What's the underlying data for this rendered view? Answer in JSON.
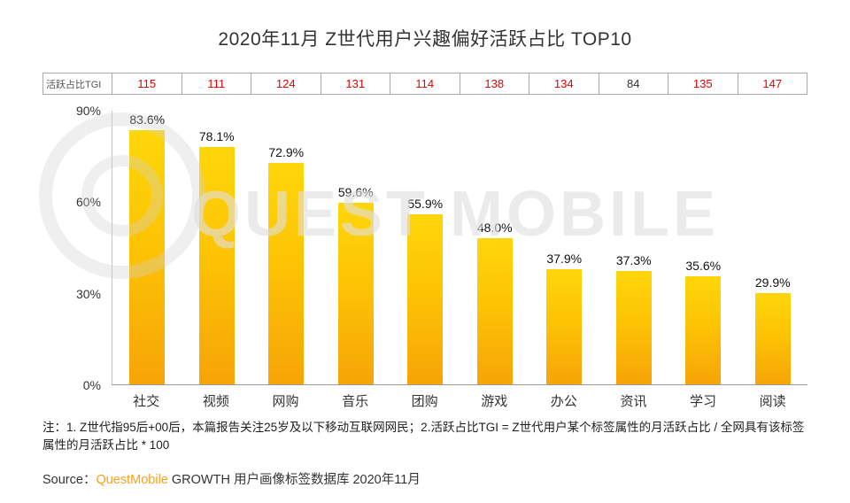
{
  "title": "2020年11月 Z世代用户兴趣偏好活跃占比 TOP10",
  "tgi": {
    "label": "活跃占比TGI",
    "values": [
      115,
      111,
      124,
      131,
      114,
      138,
      134,
      84,
      135,
      147
    ],
    "highlight_color": "#e60000",
    "normal_color": "#333333",
    "normal_index": 7
  },
  "chart_data": {
    "type": "bar",
    "categories": [
      "社交",
      "视频",
      "网购",
      "音乐",
      "团购",
      "游戏",
      "办公",
      "资讯",
      "学习",
      "阅读"
    ],
    "values": [
      83.6,
      78.1,
      72.9,
      59.6,
      55.9,
      48.0,
      37.9,
      37.3,
      35.6,
      29.9
    ],
    "value_labels": [
      "83.6%",
      "78.1%",
      "72.9%",
      "59.6%",
      "55.9%",
      "48.0%",
      "37.9%",
      "37.3%",
      "35.6%",
      "29.9%"
    ],
    "title": "2020年11月 Z世代用户兴趣偏好活跃占比 TOP10",
    "xlabel": "",
    "ylabel": "",
    "ylim": [
      0,
      90
    ],
    "yticks": [
      "0%",
      "30%",
      "60%",
      "90%"
    ],
    "grid": false,
    "legend": false,
    "bar_color_top": "#ffd60b",
    "bar_color_bottom": "#f7a407"
  },
  "watermark": "QUEST MOBILE",
  "note": "注：1. Z世代指95后+00后，本篇报告关注25岁及以下移动互联网网民；2.活跃占比TGI = Z世代用户某个标签属性的月活跃占比 / 全网具有该标签属性的月活跃占比 * 100",
  "source": {
    "prefix": "Source：",
    "brand": "QuestMobile",
    "suffix": " GROWTH 用户画像标签数据库 2020年11月"
  }
}
